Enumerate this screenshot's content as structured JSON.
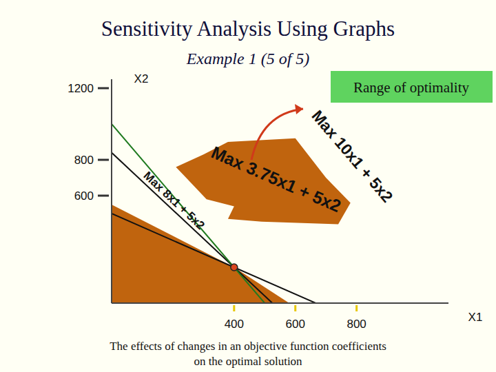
{
  "chart_data": {
    "type": "lp_graph",
    "title": "Sensitivity Analysis Using Graphs",
    "subtitle": "Example 1 (5 of 5)",
    "x_label": "X1",
    "y_label": "X2",
    "annotation": "Range of optimality",
    "caption": [
      "The effects of changes in an objective function coefficients",
      "on the optimal solution"
    ],
    "xlim": [
      0,
      1100
    ],
    "ylim": [
      0,
      1250
    ],
    "xticks": [
      400,
      600,
      800
    ],
    "yticks": [
      600,
      800,
      1200
    ],
    "feasible_regions": [
      {
        "color": "#c0640e",
        "x": [
          0,
          400,
          580,
          0
        ],
        "y": [
          550,
          200,
          0,
          0
        ]
      },
      {
        "color": "#c0640e",
        "x": [
          210,
          310,
          400,
          380,
          490,
          740,
          780,
          700,
          600,
          380,
          300
        ],
        "y": [
          760,
          580,
          540,
          470,
          455,
          440,
          560,
          700,
          920,
          900,
          830
        ]
      }
    ],
    "optimal_point": {
      "x": 400,
      "y": 200,
      "color": "#d9461f"
    },
    "objectives": [
      {
        "name": "Max 3.75x1 + 5x2",
        "c1": 3.75,
        "c2": 5,
        "color": "#111111"
      },
      {
        "name": "Max 8x1 + 5x2",
        "c1": 8,
        "c2": 5,
        "color": "#111111"
      },
      {
        "name": "Max 10x1 + 5x2",
        "c1": 10,
        "c2": 5,
        "color": "#1f7a1f"
      }
    ]
  }
}
